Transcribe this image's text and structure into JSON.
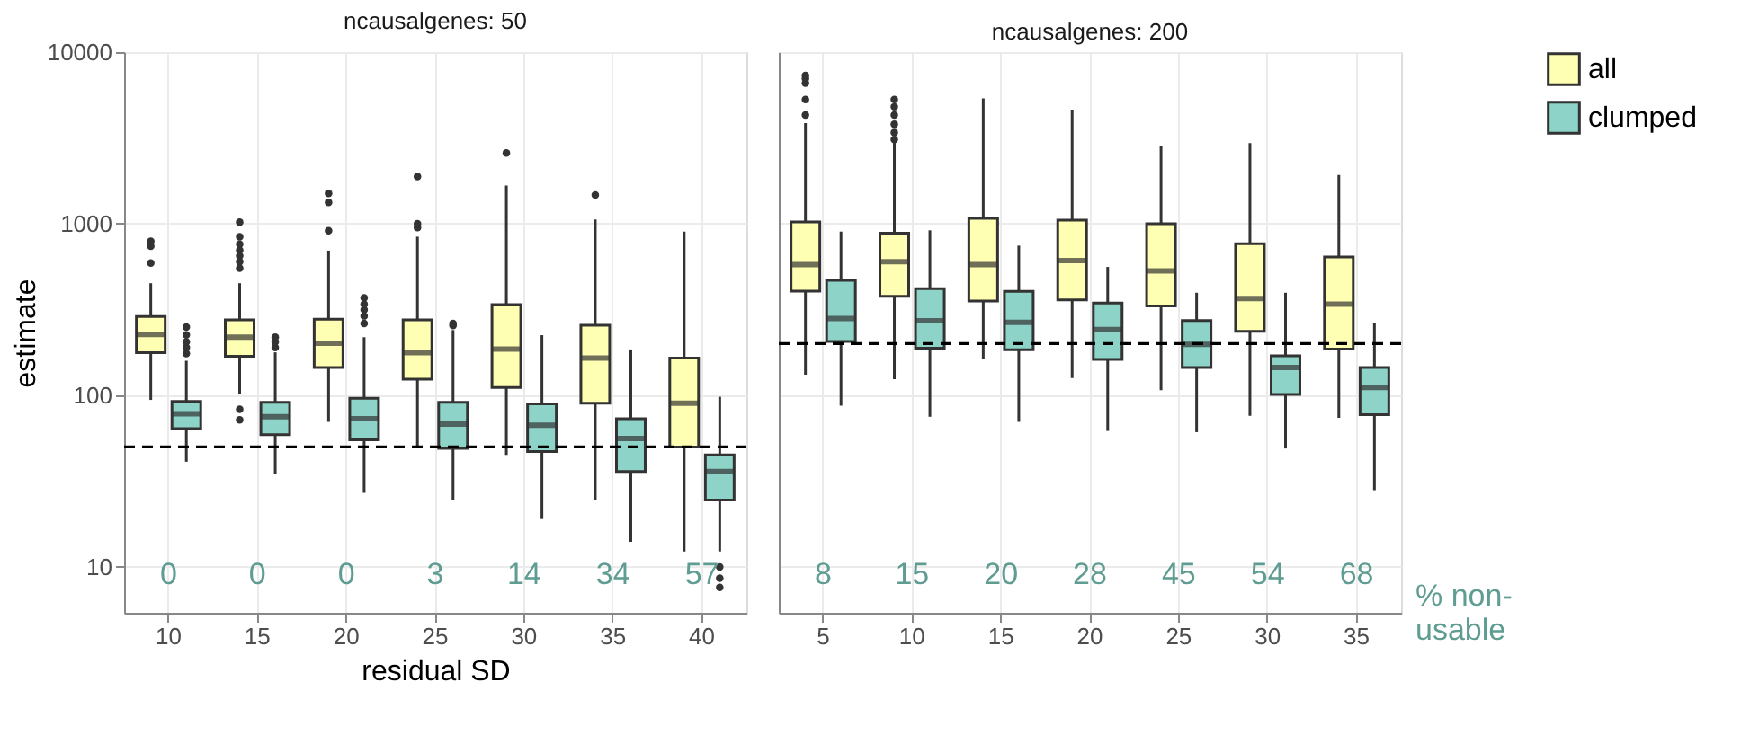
{
  "chart_data": [
    {
      "type": "box",
      "title": "ncausalgenes: 50",
      "xlabel": "residual SD",
      "ylabel": "estimate",
      "categories": [
        "10",
        "15",
        "20",
        "25",
        "30",
        "35",
        "40"
      ],
      "log": true,
      "ylim": [
        5.4,
        10000
      ],
      "yticks": [
        10,
        100,
        1000,
        10000
      ],
      "grid": true,
      "legend": "right",
      "series": [
        {
          "name": "all",
          "color": "#ffffb3",
          "boxes": [
            {
              "low": 94,
              "q1": 177,
              "median": 226,
              "q3": 288,
              "high": 450,
              "outliers": [
                590,
                740,
                790
              ]
            },
            {
              "low": 102,
              "q1": 169,
              "median": 218,
              "q3": 275,
              "high": 450,
              "outliers": [
                72,
                83,
                550,
                600,
                650,
                700,
                760,
                840,
                1020
              ]
            },
            {
              "low": 70,
              "q1": 145,
              "median": 201,
              "q3": 278,
              "high": 697,
              "outliers": [
                910,
                1330,
                1500
              ]
            },
            {
              "low": 50,
              "q1": 124,
              "median": 177,
              "q3": 275,
              "high": 840,
              "outliers": [
                950,
                1000,
                1880
              ]
            },
            {
              "low": 45,
              "q1": 111,
              "median": 186,
              "q3": 338,
              "high": 1670,
              "outliers": [
                2580
              ]
            },
            {
              "low": 24.5,
              "q1": 90,
              "median": 165,
              "q3": 256,
              "high": 1060,
              "outliers": [
                1470
              ]
            },
            {
              "low": 12.3,
              "q1": 50,
              "median": 90,
              "q3": 165,
              "high": 900
            }
          ]
        },
        {
          "name": "clumped",
          "color": "#8dd3c7",
          "boxes": [
            {
              "low": 41,
              "q1": 64,
              "median": 78,
              "q3": 92,
              "high": 159,
              "outliers": [
                175,
                190,
                205,
                225,
                250
              ]
            },
            {
              "low": 35,
              "q1": 59,
              "median": 75,
              "q3": 91,
              "high": 178,
              "outliers": [
                190,
                205,
                218
              ]
            },
            {
              "low": 27,
              "q1": 55,
              "median": 73,
              "q3": 96,
              "high": 218,
              "outliers": [
                262,
                290,
                315,
                340,
                370
              ]
            },
            {
              "low": 24.5,
              "q1": 49,
              "median": 68,
              "q3": 91,
              "high": 240,
              "outliers": [
                255,
                262
              ]
            },
            {
              "low": 19,
              "q1": 47,
              "median": 67,
              "q3": 89,
              "high": 224
            },
            {
              "low": 14,
              "q1": 36,
              "median": 56,
              "q3": 73,
              "high": 185
            },
            {
              "low": 12.3,
              "q1": 24.5,
              "median": 36,
              "q3": 45,
              "high": 98,
              "outliers": [
                7.6,
                8.6,
                10
              ]
            }
          ]
        }
      ],
      "ref_lines": [
        {
          "axis": "y",
          "value": 50,
          "color": "#000000",
          "line_style": "dashed"
        }
      ],
      "annotations": [
        "0",
        "0",
        "0",
        "3",
        "14",
        "34",
        "57"
      ]
    },
    {
      "type": "box",
      "title": "ncausalgenes: 200",
      "categories": [
        "5",
        "10",
        "15",
        "20",
        "25",
        "30",
        "35"
      ],
      "log": true,
      "ylim": [
        5.4,
        10000
      ],
      "yticks": [
        10,
        100,
        1000,
        10000
      ],
      "grid": true,
      "legend": "right",
      "tick_labels": "x",
      "series": [
        {
          "name": "all",
          "color": "#ffffb3",
          "boxes": [
            {
              "low": 132,
              "q1": 405,
              "median": 577,
              "q3": 1025,
              "high": 3860,
              "outliers": [
                4300,
                5300,
                6600,
                7000,
                7300
              ]
            },
            {
              "low": 124,
              "q1": 377,
              "median": 600,
              "q3": 880,
              "high": 3000,
              "outliers": [
                3100,
                3400,
                3800,
                4300,
                4800,
                5300
              ]
            },
            {
              "low": 162,
              "q1": 354,
              "median": 577,
              "q3": 1075,
              "high": 5380
            },
            {
              "low": 126,
              "q1": 360,
              "median": 610,
              "q3": 1050,
              "high": 4620
            },
            {
              "low": 107,
              "q1": 332,
              "median": 530,
              "q3": 1000,
              "high": 2850
            },
            {
              "low": 76,
              "q1": 236,
              "median": 366,
              "q3": 765,
              "high": 2950
            },
            {
              "low": 74,
              "q1": 186,
              "median": 340,
              "q3": 640,
              "high": 1920
            }
          ]
        },
        {
          "name": "clumped",
          "color": "#8dd3c7",
          "boxes": [
            {
              "low": 87,
              "q1": 206,
              "median": 280,
              "q3": 468,
              "high": 900
            },
            {
              "low": 75,
              "q1": 188,
              "median": 272,
              "q3": 418,
              "high": 915
            },
            {
              "low": 70,
              "q1": 184,
              "median": 266,
              "q3": 404,
              "high": 745
            },
            {
              "low": 62,
              "q1": 162,
              "median": 242,
              "q3": 345,
              "high": 560
            },
            {
              "low": 61,
              "q1": 145,
              "median": 198,
              "q3": 273,
              "high": 396
            },
            {
              "low": 49,
              "q1": 101,
              "median": 145,
              "q3": 170,
              "high": 396
            },
            {
              "low": 28,
              "q1": 77,
              "median": 111,
              "q3": 145,
              "high": 265
            }
          ]
        }
      ],
      "ref_lines": [
        {
          "axis": "y",
          "value": 200,
          "color": "#000000",
          "line_style": "dashed"
        }
      ],
      "annotations": [
        "8",
        "15",
        "20",
        "28",
        "45",
        "54",
        "68",
        "% non-usable"
      ]
    }
  ]
}
